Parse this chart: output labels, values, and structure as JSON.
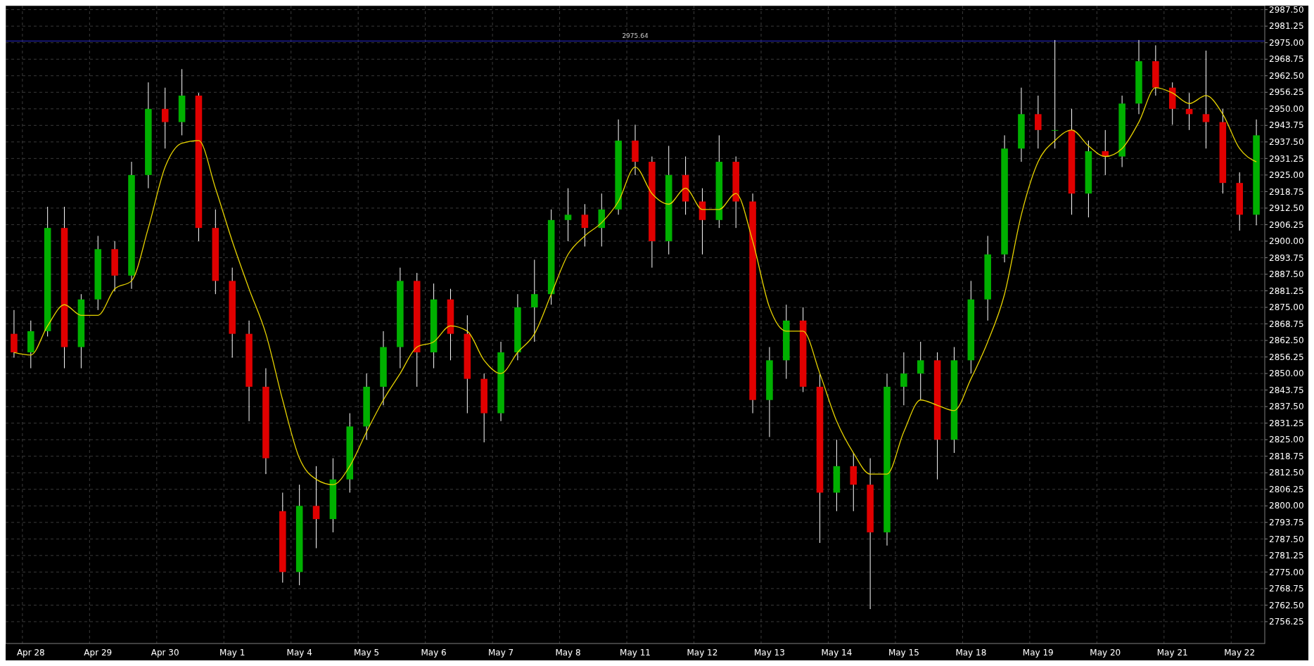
{
  "chart_data": {
    "type": "candlestick",
    "categories": [
      null,
      "Apr 28",
      null,
      null,
      null,
      "Apr 29",
      null,
      null,
      null,
      "Apr 30",
      null,
      null,
      null,
      "May 1",
      null,
      null,
      null,
      "May 4",
      null,
      null,
      null,
      "May 5",
      null,
      null,
      null,
      "May 6",
      null,
      null,
      null,
      "May 7",
      null,
      null,
      null,
      "May 8",
      null,
      null,
      null,
      "May 11",
      null,
      null,
      null,
      "May 12",
      null,
      null,
      null,
      "May 13",
      null,
      null,
      null,
      "May 14",
      null,
      null,
      null,
      "May 15",
      null,
      null,
      null,
      "May 18",
      null,
      null,
      null,
      "May 19",
      null,
      null,
      null,
      "May 20",
      null,
      null,
      null,
      "May 21",
      null,
      null,
      null,
      "May 22",
      null
    ],
    "ohlc": [
      [
        2865,
        2874,
        2856,
        2858
      ],
      [
        2858,
        2870,
        2852,
        2866
      ],
      [
        2866,
        2913,
        2864,
        2905
      ],
      [
        2905,
        2913,
        2852,
        2860
      ],
      [
        2860,
        2880,
        2852,
        2878
      ],
      [
        2878,
        2902,
        2874,
        2897
      ],
      [
        2897,
        2900,
        2881,
        2887
      ],
      [
        2887,
        2930,
        2882,
        2925
      ],
      [
        2925,
        2960,
        2920,
        2950
      ],
      [
        2950,
        2958,
        2935,
        2945
      ],
      [
        2945,
        2965,
        2940,
        2955
      ],
      [
        2955,
        2956,
        2900,
        2905
      ],
      [
        2905,
        2912,
        2880,
        2885
      ],
      [
        2885,
        2890,
        2856,
        2865
      ],
      [
        2865,
        2870,
        2832,
        2845
      ],
      [
        2845,
        2852,
        2812,
        2818
      ],
      [
        2798,
        2805,
        2771,
        2775
      ],
      [
        2775,
        2808,
        2770,
        2800
      ],
      [
        2800,
        2815,
        2784,
        2795
      ],
      [
        2795,
        2818,
        2790,
        2810
      ],
      [
        2810,
        2835,
        2805,
        2830
      ],
      [
        2830,
        2850,
        2825,
        2845
      ],
      [
        2845,
        2866,
        2838,
        2860
      ],
      [
        2860,
        2890,
        2852,
        2885
      ],
      [
        2885,
        2888,
        2845,
        2858
      ],
      [
        2858,
        2884,
        2852,
        2878
      ],
      [
        2878,
        2882,
        2855,
        2865
      ],
      [
        2865,
        2872,
        2835,
        2848
      ],
      [
        2848,
        2850,
        2824,
        2835
      ],
      [
        2835,
        2862,
        2832,
        2858
      ],
      [
        2858,
        2880,
        2855,
        2875
      ],
      [
        2875,
        2893,
        2862,
        2880
      ],
      [
        2880,
        2912,
        2876,
        2908
      ],
      [
        2908,
        2920,
        2900,
        2910
      ],
      [
        2910,
        2914,
        2898,
        2905
      ],
      [
        2905,
        2918,
        2898,
        2912
      ],
      [
        2912,
        2946,
        2910,
        2938
      ],
      [
        2938,
        2944,
        2925,
        2930
      ],
      [
        2930,
        2932,
        2890,
        2900
      ],
      [
        2900,
        2936,
        2895,
        2925
      ],
      [
        2925,
        2932,
        2910,
        2915
      ],
      [
        2915,
        2920,
        2895,
        2908
      ],
      [
        2908,
        2940,
        2905,
        2930
      ],
      [
        2930,
        2932,
        2905,
        2915
      ],
      [
        2915,
        2918,
        2835,
        2840
      ],
      [
        2840,
        2860,
        2826,
        2855
      ],
      [
        2855,
        2876,
        2848,
        2870
      ],
      [
        2870,
        2875,
        2843,
        2845
      ],
      [
        2845,
        2850,
        2786,
        2805
      ],
      [
        2805,
        2825,
        2798,
        2815
      ],
      [
        2815,
        2820,
        2798,
        2808
      ],
      [
        2808,
        2818,
        2761,
        2790
      ],
      [
        2790,
        2850,
        2785,
        2845
      ],
      [
        2845,
        2858,
        2838,
        2850
      ],
      [
        2850,
        2862,
        2840,
        2855
      ],
      [
        2855,
        2858,
        2810,
        2825
      ],
      [
        2825,
        2860,
        2820,
        2855
      ],
      [
        2855,
        2885,
        2850,
        2878
      ],
      [
        2878,
        2902,
        2870,
        2895
      ],
      [
        2895,
        2940,
        2892,
        2935
      ],
      [
        2935,
        2958,
        2930,
        2948
      ],
      [
        2948,
        2955,
        2935,
        2942
      ],
      [
        2942,
        2976,
        2935,
        2942
      ],
      [
        2942,
        2950,
        2910,
        2918
      ],
      [
        2918,
        2938,
        2909,
        2934
      ],
      [
        2934,
        2942,
        2925,
        2932
      ],
      [
        2932,
        2955,
        2928,
        2952
      ],
      [
        2952,
        2976,
        2948,
        2968
      ],
      [
        2968,
        2974,
        2955,
        2958
      ],
      [
        2958,
        2960,
        2944,
        2950
      ],
      [
        2950,
        2956,
        2942,
        2948
      ],
      [
        2948,
        2972,
        2935,
        2945
      ],
      [
        2945,
        2950,
        2918,
        2922
      ],
      [
        2922,
        2926,
        2904,
        2910
      ],
      [
        2910,
        2946,
        2906,
        2940
      ]
    ],
    "series": [
      {
        "type": "line",
        "color": "#e6d200",
        "values": [
          2858,
          2857,
          2868,
          2876,
          2872,
          2872,
          2882,
          2885,
          2905,
          2928,
          2937,
          2938,
          2920,
          2900,
          2882,
          2865,
          2840,
          2818,
          2810,
          2808,
          2815,
          2828,
          2840,
          2850,
          2860,
          2862,
          2868,
          2866,
          2855,
          2850,
          2858,
          2865,
          2880,
          2895,
          2902,
          2907,
          2915,
          2928,
          2918,
          2914,
          2920,
          2912,
          2912,
          2918,
          2900,
          2875,
          2866,
          2866,
          2850,
          2832,
          2820,
          2812,
          2812,
          2828,
          2840,
          2838,
          2836,
          2848,
          2862,
          2880,
          2910,
          2930,
          2938,
          2942,
          2936,
          2932,
          2935,
          2945,
          2958,
          2956,
          2952,
          2955,
          2948,
          2935,
          2930
        ]
      }
    ],
    "ref_lines": [
      {
        "axis": "y",
        "value": 2975.64,
        "label": "2975.64",
        "color": "#2a2ad0"
      }
    ],
    "ylim": [
      2748,
      2989
    ],
    "yticks": [
      {
        "value": 2756.25,
        "label": "2756.25"
      },
      {
        "value": 2762.5,
        "label": "2762.50"
      },
      {
        "value": 2768.75,
        "label": "2768.75"
      },
      {
        "value": 2775,
        "label": "2775.00"
      },
      {
        "value": 2781.25,
        "label": "2781.25"
      },
      {
        "value": 2787.5,
        "label": "2787.50"
      },
      {
        "value": 2793.75,
        "label": "2793.75"
      },
      {
        "value": 2800,
        "label": "2800.00"
      },
      {
        "value": 2806.25,
        "label": "2806.25"
      },
      {
        "value": 2812.5,
        "label": "2812.50"
      },
      {
        "value": 2818.75,
        "label": "2818.75"
      },
      {
        "value": 2825,
        "label": "2825.00"
      },
      {
        "value": 2831.25,
        "label": "2831.25"
      },
      {
        "value": 2837.5,
        "label": "2837.50"
      },
      {
        "value": 2843.75,
        "label": "2843.75"
      },
      {
        "value": 2850,
        "label": "2850.00"
      },
      {
        "value": 2856.25,
        "label": "2856.25"
      },
      {
        "value": 2862.5,
        "label": "2862.50"
      },
      {
        "value": 2868.75,
        "label": "2868.75"
      },
      {
        "value": 2875,
        "label": "2875.00"
      },
      {
        "value": 2881.25,
        "label": "2881.25"
      },
      {
        "value": 2887.5,
        "label": "2887.50"
      },
      {
        "value": 2893.75,
        "label": "2893.75"
      },
      {
        "value": 2900,
        "label": "2900.00"
      },
      {
        "value": 2906.25,
        "label": "2906.25"
      },
      {
        "value": 2912.5,
        "label": "2912.50"
      },
      {
        "value": 2918.75,
        "label": "2918.75"
      },
      {
        "value": 2925,
        "label": "2925.00"
      },
      {
        "value": 2931.25,
        "label": "2931.25"
      },
      {
        "value": 2937.5,
        "label": "2937.50"
      },
      {
        "value": 2943.75,
        "label": "2943.75"
      },
      {
        "value": 2950,
        "label": "2950.00"
      },
      {
        "value": 2956.25,
        "label": "2956.25"
      },
      {
        "value": 2962.5,
        "label": "2962.50"
      },
      {
        "value": 2968.75,
        "label": "2968.75"
      },
      {
        "value": 2975,
        "label": "2975.00"
      },
      {
        "value": 2981.25,
        "label": "2981.25"
      },
      {
        "value": 2987.5,
        "label": "2987.50"
      }
    ],
    "grid": true
  }
}
